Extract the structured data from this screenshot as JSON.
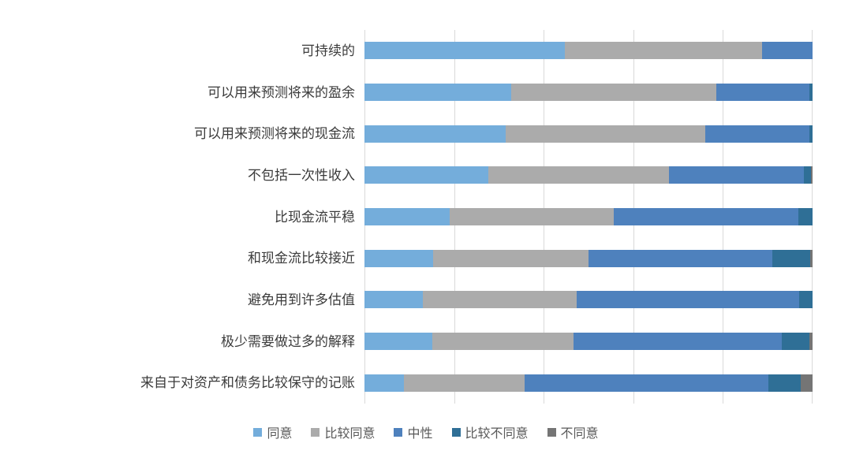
{
  "chart_data": {
    "type": "bar",
    "orientation": "horizontal",
    "stacked": true,
    "unit": "percent",
    "title": "",
    "xlabel": "",
    "ylabel": "",
    "xlim": [
      0,
      100
    ],
    "x_ticks": [
      0,
      20,
      40,
      60,
      80,
      100
    ],
    "grid": true,
    "gridline_color": "#d9d9d9",
    "legend_position": "bottom",
    "categories": [
      "可持续的",
      "可以用来预测将来的盈余",
      "可以用来预测将来的现金流",
      "不包括一次性收入",
      "比现金流平稳",
      "和现金流比较接近",
      "避免用到许多估值",
      "极少需要做过多的解释",
      "来自于对资产和债务比较保守的记账"
    ],
    "series": [
      {
        "key": "agree",
        "name": "同意",
        "color": "#74addb",
        "values": [
          44.8,
          32.8,
          31.5,
          27.6,
          19.1,
          15.4,
          13.1,
          15.2,
          8.8
        ]
      },
      {
        "key": "somewhat-agree",
        "name": "比较同意",
        "color": "#ababab",
        "values": [
          43.9,
          45.7,
          44.6,
          40.4,
          36.6,
          34.6,
          34.2,
          31.4,
          26.9
        ]
      },
      {
        "key": "neutral",
        "name": "中性",
        "color": "#4e81bd",
        "values": [
          11.3,
          20.8,
          23.2,
          30.1,
          41.2,
          41.1,
          49.7,
          46.6,
          54.5
        ]
      },
      {
        "key": "somewhat-disagree",
        "name": "比较不同意",
        "color": "#2f6f96",
        "values": [
          0,
          0.7,
          0.7,
          1.5,
          3.1,
          8.4,
          3.0,
          6.1,
          7.2
        ]
      },
      {
        "key": "disagree",
        "name": "不同意",
        "color": "#757575",
        "values": [
          0,
          0,
          0,
          0.4,
          0,
          0.5,
          0,
          0.7,
          2.6
        ]
      }
    ]
  },
  "colors": {
    "background": "#ffffff",
    "gridline": "#d9d9d9",
    "category_text": "#3b3b3b",
    "legend_text": "#595959"
  }
}
